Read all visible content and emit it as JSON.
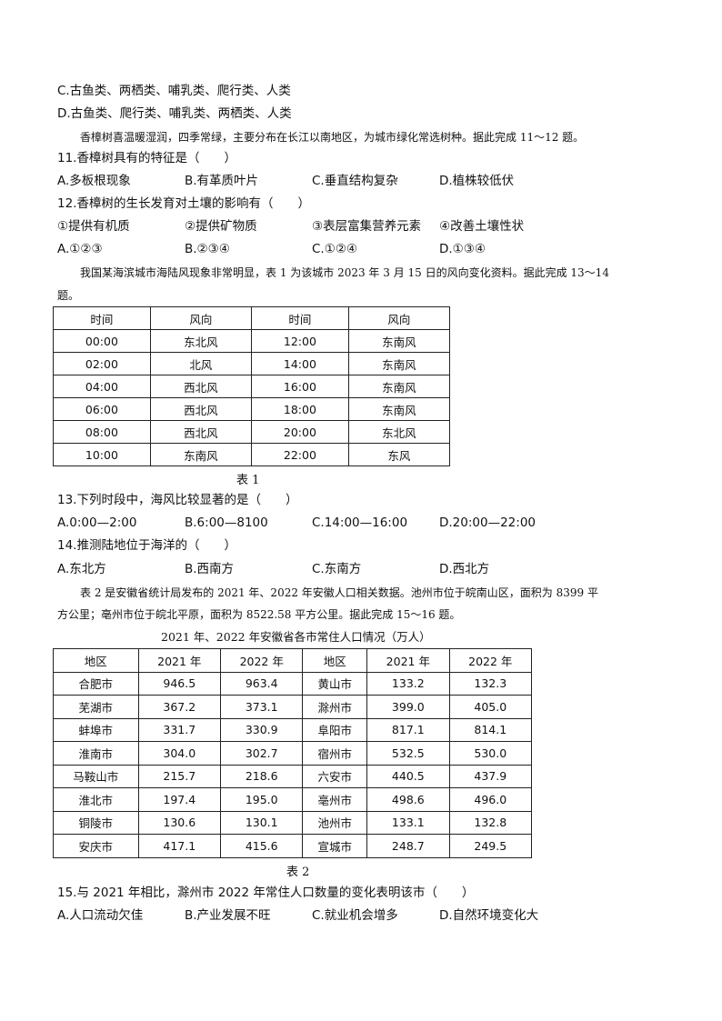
{
  "q10_options": {
    "c": "C.古鱼类、两栖类、哺乳类、爬行类、人类",
    "d": "D.古鱼类、爬行类、哺乳类、两栖类、人类"
  },
  "intro_11_12": "香樟树喜温暖湿润，四季常绿，主要分布在长江以南地区，为城市绿化常选树种。据此完成 11～12 题。",
  "q11": {
    "stem": "11.香樟树具有的特征是（　　）",
    "options": [
      "A.多板根现象",
      "B.有革质叶片",
      "C.垂直结构复杂",
      "D.植株较低伏"
    ]
  },
  "q12": {
    "stem": "12.香樟树的生长发育对土壤的影响有（　　）",
    "items": [
      "①提供有机质",
      "②提供矿物质",
      "③表层富集营养元素",
      "④改善土壤性状"
    ],
    "options": [
      "A.①②③",
      "B.②③④",
      "C.①②④",
      "D.①③④"
    ]
  },
  "intro_13_14": {
    "line1": "我国某海滨城市海陆风现象非常明显，表 1 为该城市 2023 年 3 月 15 日的风向变化资料。据此完成 13～14",
    "line2": "题。"
  },
  "table1": {
    "headers": [
      "时间",
      "风向",
      "时间",
      "风向"
    ],
    "rows": [
      [
        "00:00",
        "东北风",
        "12:00",
        "东南风"
      ],
      [
        "02:00",
        "北风",
        "14:00",
        "东南风"
      ],
      [
        "04:00",
        "西北风",
        "16:00",
        "东南风"
      ],
      [
        "06:00",
        "西北风",
        "18:00",
        "东南风"
      ],
      [
        "08:00",
        "西北风",
        "20:00",
        "东北风"
      ],
      [
        "10:00",
        "东南风",
        "22:00",
        "东风"
      ]
    ],
    "caption": "表 1"
  },
  "q13": {
    "stem": "13.下列时段中，海风比较显著的是（　　）",
    "options": [
      "A.0:00—2:00",
      "B.6:00—8100",
      "C.14:00—16:00",
      "D.20:00—22:00"
    ]
  },
  "q14": {
    "stem": "14.推测陆地位于海洋的（　　）",
    "options": [
      "A.东北方",
      "B.西南方",
      "C.东南方",
      "D.西北方"
    ]
  },
  "intro_15_16": {
    "line1": "表 2 是安徽省统计局发布的 2021 年、2022 年安徽人口相关数据。池州市位于皖南山区，面积为 8399 平",
    "line2": "方公里；亳州市位于皖北平原，面积为 8522.58 平方公里。据此完成 15～16 题。"
  },
  "table2": {
    "title": "2021 年、2022 年安徽省各市常住人口情况（万人）",
    "headers": [
      "地区",
      "2021 年",
      "2022 年",
      "地区",
      "2021 年",
      "2022 年"
    ],
    "rows": [
      [
        "合肥市",
        "946.5",
        "963.4",
        "黄山市",
        "133.2",
        "132.3"
      ],
      [
        "芜湖市",
        "367.2",
        "373.1",
        "滁州市",
        "399.0",
        "405.0"
      ],
      [
        "蚌埠市",
        "331.7",
        "330.9",
        "阜阳市",
        "817.1",
        "814.1"
      ],
      [
        "淮南市",
        "304.0",
        "302.7",
        "宿州市",
        "532.5",
        "530.0"
      ],
      [
        "马鞍山市",
        "215.7",
        "218.6",
        "六安市",
        "440.5",
        "437.9"
      ],
      [
        "淮北市",
        "197.4",
        "195.0",
        "亳州市",
        "498.6",
        "496.0"
      ],
      [
        "铜陵市",
        "130.6",
        "130.1",
        "池州市",
        "133.1",
        "132.8"
      ],
      [
        "安庆市",
        "417.1",
        "415.6",
        "宣城市",
        "248.7",
        "249.5"
      ]
    ],
    "caption": "表 2"
  },
  "q15": {
    "stem": "15.与 2021 年相比，滁州市 2022 年常住人口数量的变化表明该市（　　）",
    "options": [
      "A.人口流动欠佳",
      "B.产业发展不旺",
      "C.就业机会增多",
      "D.自然环境变化大"
    ]
  }
}
